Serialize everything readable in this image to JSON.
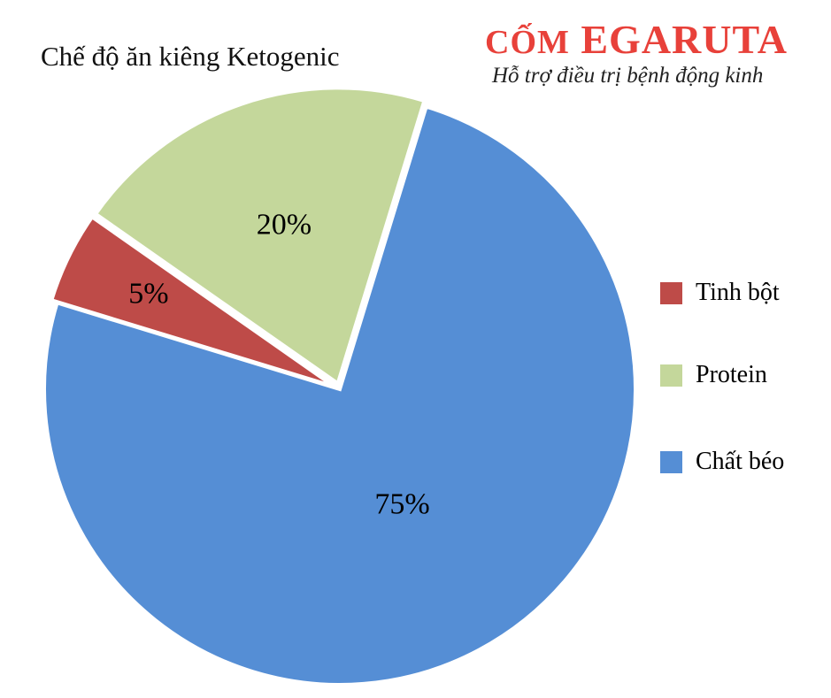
{
  "header": {
    "title": "Chế độ ăn kiêng Ketogenic",
    "brand_prefix": "CỐM",
    "brand_name": "EGARUTA",
    "tagline": "Hỗ trợ điều trị bệnh động kinh"
  },
  "chart_data": {
    "type": "pie",
    "title": "Chế độ ăn kiêng Ketogenic",
    "categories": [
      "Tinh bột",
      "Protein",
      "Chất béo"
    ],
    "values": [
      5,
      20,
      75
    ],
    "labels": [
      "5%",
      "20%",
      "75%"
    ],
    "colors": [
      "#BE4B48",
      "#C4D79B",
      "#558ED5"
    ],
    "exploded": [
      true,
      true,
      false
    ],
    "legend_position": "right"
  }
}
